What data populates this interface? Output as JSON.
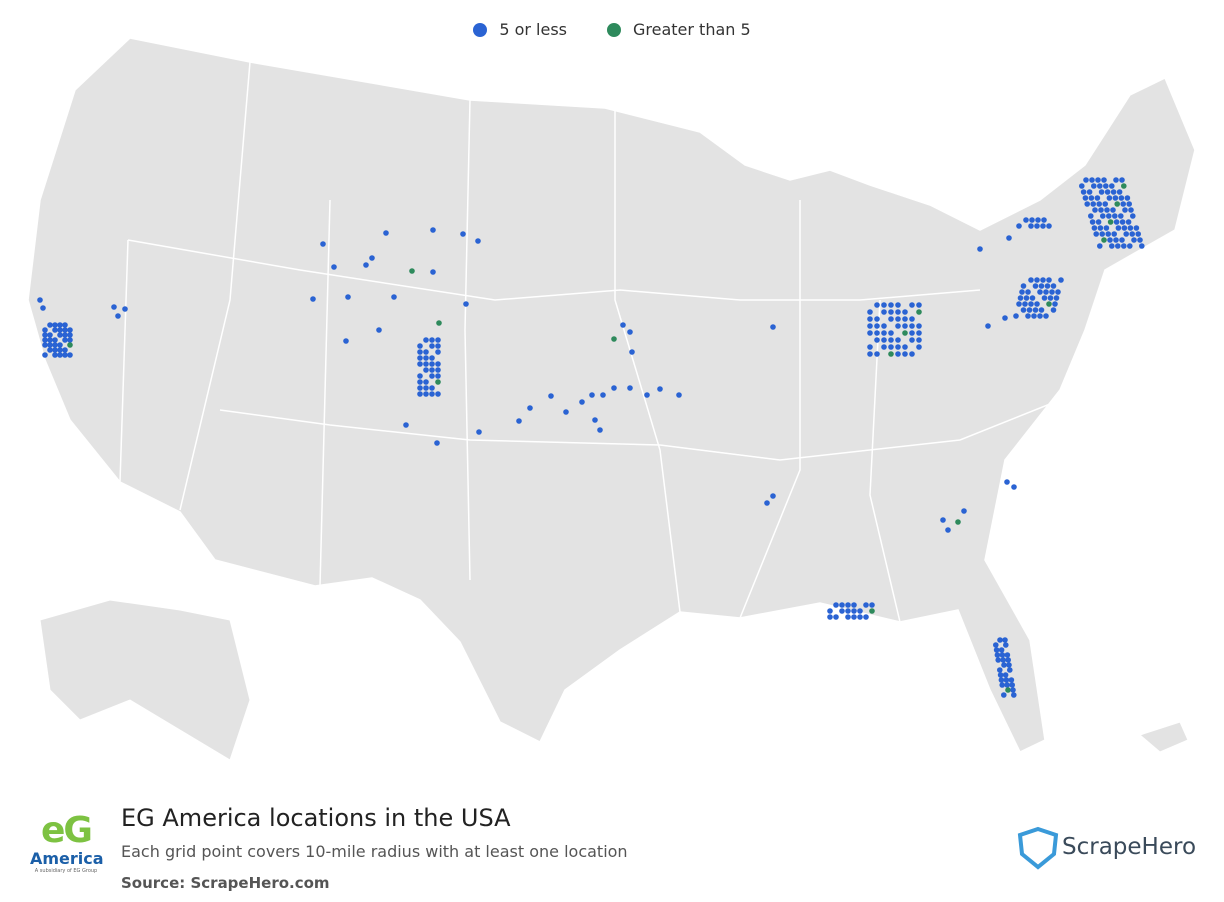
{
  "legend": {
    "items": [
      {
        "label": "5 or less",
        "color": "#2a63d3"
      },
      {
        "label": "Greater than 5",
        "color": "#2e8a5c"
      }
    ]
  },
  "footer": {
    "title": "EG America locations in the USA",
    "subtitle": "Each grid point covers 10-mile radius with at least one location",
    "source": "Source: ScrapeHero.com"
  },
  "logo": {
    "mark": "eG",
    "name": "America",
    "tagline": "A subsidiary of EG Group"
  },
  "brand": {
    "name": "ScrapeHero"
  }
}
